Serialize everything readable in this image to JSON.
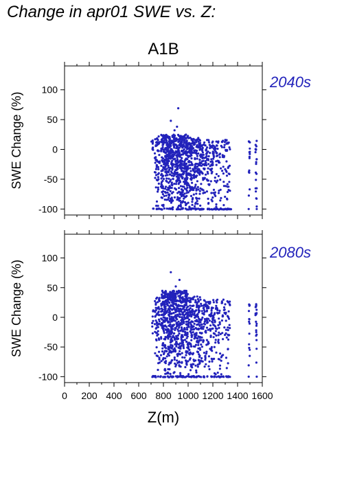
{
  "title": "Change in apr01 SWE vs. Z:",
  "colors": {
    "points": "#2222bb",
    "period_label": "#2222bb",
    "axis": "#000000"
  },
  "chart_data": [
    {
      "type": "scatter",
      "panel_title": "A1B",
      "period_label": "2040s",
      "ylabel": "SWE Change (%)",
      "xlabel": "",
      "xlim": [
        0,
        1600
      ],
      "ylim": [
        -110,
        140
      ],
      "x_ticks": [],
      "y_ticks": [
        -100,
        -50,
        0,
        50,
        100
      ],
      "clusters": [
        {
          "x": [
            700,
            720
          ],
          "y": [
            -10,
            15
          ],
          "n": 8
        },
        {
          "x": [
            730,
            770
          ],
          "y": [
            -100,
            22
          ],
          "n": 60
        },
        {
          "x": [
            780,
            840
          ],
          "y": [
            -100,
            25
          ],
          "n": 160
        },
        {
          "x": [
            840,
            1000
          ],
          "y": [
            -100,
            25
          ],
          "n": 480
        },
        {
          "x": [
            1000,
            1100
          ],
          "y": [
            -100,
            20
          ],
          "n": 200
        },
        {
          "x": [
            1100,
            1220
          ],
          "y": [
            -100,
            16
          ],
          "n": 140
        },
        {
          "x": [
            1220,
            1340
          ],
          "y": [
            -100,
            16
          ],
          "n": 90
        },
        {
          "x": [
            1490,
            1500
          ],
          "y": [
            -100,
            15
          ],
          "n": 14
        },
        {
          "x": [
            1545,
            1555
          ],
          "y": [
            -100,
            15
          ],
          "n": 20
        }
      ],
      "bottom_band": {
        "x": [
          700,
          1350
        ],
        "y": -100,
        "n": 90
      },
      "extra_points": [
        {
          "x": 920,
          "y": 69
        },
        {
          "x": 860,
          "y": 48
        },
        {
          "x": 910,
          "y": 38
        },
        {
          "x": 890,
          "y": 32
        },
        {
          "x": 1490,
          "y": -100
        },
        {
          "x": 1555,
          "y": -100
        }
      ]
    },
    {
      "type": "scatter",
      "panel_title": "",
      "period_label": "2080s",
      "ylabel": "SWE Change (%)",
      "xlabel": "Z(m)",
      "xlim": [
        0,
        1600
      ],
      "ylim": [
        -110,
        140
      ],
      "x_ticks": [
        0,
        200,
        400,
        600,
        800,
        1000,
        1200,
        1400,
        1600
      ],
      "y_ticks": [
        -100,
        -50,
        0,
        50,
        100
      ],
      "clusters": [
        {
          "x": [
            700,
            720
          ],
          "y": [
            -40,
            15
          ],
          "n": 8
        },
        {
          "x": [
            730,
            770
          ],
          "y": [
            -100,
            35
          ],
          "n": 60
        },
        {
          "x": [
            780,
            840
          ],
          "y": [
            -100,
            45
          ],
          "n": 170
        },
        {
          "x": [
            840,
            1000
          ],
          "y": [
            -100,
            45
          ],
          "n": 480
        },
        {
          "x": [
            1000,
            1100
          ],
          "y": [
            -100,
            35
          ],
          "n": 200
        },
        {
          "x": [
            1100,
            1220
          ],
          "y": [
            -100,
            30
          ],
          "n": 140
        },
        {
          "x": [
            1220,
            1340
          ],
          "y": [
            -100,
            30
          ],
          "n": 90
        },
        {
          "x": [
            1490,
            1500
          ],
          "y": [
            -100,
            25
          ],
          "n": 14
        },
        {
          "x": [
            1545,
            1555
          ],
          "y": [
            -100,
            25
          ],
          "n": 20
        }
      ],
      "bottom_band": {
        "x": [
          700,
          1350
        ],
        "y": -100,
        "n": 90
      },
      "extra_points": [
        {
          "x": 860,
          "y": 76
        },
        {
          "x": 930,
          "y": 63
        },
        {
          "x": 900,
          "y": 52
        },
        {
          "x": 1490,
          "y": -100
        },
        {
          "x": 1555,
          "y": -100
        }
      ]
    }
  ]
}
